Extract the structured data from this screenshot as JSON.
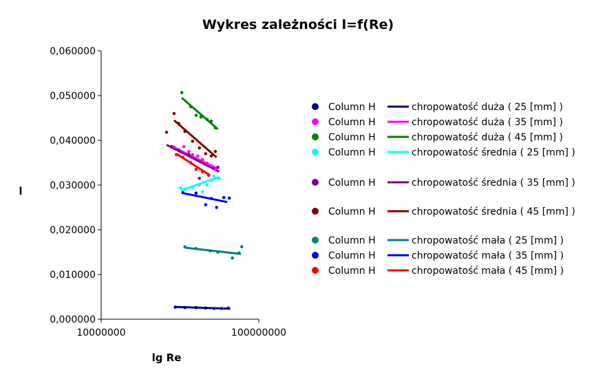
{
  "chart_data": {
    "type": "scatter",
    "title": "Wykres zależności l=f(Re)",
    "xlabel": "lg Re",
    "ylabel": "l",
    "x_scale": "log",
    "xlim": [
      10000000,
      100000000
    ],
    "ylim": [
      0,
      0.06
    ],
    "x_ticks": [
      "10000000",
      "100000000"
    ],
    "y_ticks": [
      "0,000000",
      "0,010000",
      "0,020000",
      "0,030000",
      "0,040000",
      "0,050000",
      "0,060000"
    ],
    "grid": false,
    "legend_position": "right",
    "series": [
      {
        "name": "Column H",
        "trend_name": "chropowatość duża ( 25 [mm] )",
        "color": "#000080",
        "points": [
          [
            29500000,
            0.0027
          ],
          [
            34000000,
            0.0026
          ],
          [
            40000000,
            0.0026
          ],
          [
            46000000,
            0.0025
          ],
          [
            52000000,
            0.0024
          ],
          [
            58000000,
            0.0024
          ],
          [
            64000000,
            0.0025
          ]
        ],
        "trend": [
          [
            29500000,
            0.00275
          ],
          [
            66000000,
            0.00235
          ]
        ]
      },
      {
        "name": "Column H",
        "trend_name": "chropowatość duża ( 35 [mm] )",
        "color": "#ff00ff",
        "points": [
          [
            29000000,
            0.0385
          ],
          [
            33500000,
            0.0386
          ],
          [
            36000000,
            0.0375
          ],
          [
            38000000,
            0.0368
          ],
          [
            41000000,
            0.0365
          ],
          [
            44000000,
            0.0357
          ],
          [
            47000000,
            0.0349
          ],
          [
            50000000,
            0.0343
          ],
          [
            53000000,
            0.0334
          ]
        ],
        "trend": [
          [
            29500000,
            0.0383
          ],
          [
            55000000,
            0.0336
          ]
        ]
      },
      {
        "name": "Column H",
        "trend_name": "chropowatość duża ( 45 [mm] )",
        "color": "#008000",
        "points": [
          [
            32500000,
            0.0507
          ],
          [
            37000000,
            0.0475
          ],
          [
            40000000,
            0.0456
          ],
          [
            43000000,
            0.0452
          ],
          [
            47000000,
            0.0447
          ],
          [
            50000000,
            0.0443
          ],
          [
            53000000,
            0.0428
          ]
        ],
        "trend": [
          [
            32500000,
            0.0495
          ],
          [
            55000000,
            0.0425
          ]
        ]
      },
      {
        "name": "Column H",
        "trend_name": "chropowatość średnia ( 25 [mm] )",
        "color": "#00ffff",
        "points": [
          [
            32000000,
            0.0294
          ],
          [
            34000000,
            0.029
          ],
          [
            38000000,
            0.0295
          ],
          [
            42000000,
            0.03
          ],
          [
            44000000,
            0.0285
          ],
          [
            47000000,
            0.03
          ],
          [
            50000000,
            0.031
          ],
          [
            52000000,
            0.032
          ],
          [
            56000000,
            0.0315
          ]
        ],
        "trend": [
          [
            32000000,
            0.0288
          ],
          [
            56000000,
            0.0318
          ]
        ]
      },
      {
        "name": "Column H",
        "trend_name": "chropowatość średnia ( 35 [mm] )",
        "color": "#800080",
        "points": [
          [
            26000000,
            0.0418
          ],
          [
            28000000,
            0.0386
          ],
          [
            31000000,
            0.0378
          ],
          [
            36000000,
            0.0368
          ],
          [
            42000000,
            0.0315
          ],
          [
            48000000,
            0.0322
          ],
          [
            55000000,
            0.034
          ]
        ],
        "trend": [
          [
            26000000,
            0.039
          ],
          [
            56000000,
            0.033
          ]
        ]
      },
      {
        "name": "Column H",
        "trend_name": "chropowatość średnia ( 45 [mm] )",
        "color": "#800000",
        "points": [
          [
            29000000,
            0.046
          ],
          [
            31000000,
            0.0438
          ],
          [
            34000000,
            0.042
          ],
          [
            38000000,
            0.0398
          ],
          [
            42000000,
            0.0383
          ],
          [
            46000000,
            0.037
          ],
          [
            50000000,
            0.0365
          ],
          [
            53000000,
            0.0375
          ]
        ],
        "trend": [
          [
            29000000,
            0.0445
          ],
          [
            54000000,
            0.0362
          ]
        ]
      },
      {
        "name": "Column H",
        "trend_name": "chropowatość mała ( 25 [mm] )",
        "color": "#008080",
        "points": [
          [
            34000000,
            0.0162
          ],
          [
            40000000,
            0.0158
          ],
          [
            49000000,
            0.0153
          ],
          [
            55000000,
            0.015
          ],
          [
            68000000,
            0.0137
          ],
          [
            75000000,
            0.0148
          ],
          [
            78000000,
            0.0162
          ]
        ],
        "trend": [
          [
            34000000,
            0.016
          ],
          [
            77000000,
            0.0146
          ]
        ]
      },
      {
        "name": "Column H",
        "trend_name": "chropowatość mała ( 35 [mm] )",
        "color": "#0000ff",
        "points": [
          [
            33000000,
            0.0283
          ],
          [
            40000000,
            0.0282
          ],
          [
            46000000,
            0.0256
          ],
          [
            50000000,
            0.027
          ],
          [
            54000000,
            0.025
          ],
          [
            60000000,
            0.0272
          ],
          [
            65000000,
            0.0271
          ]
        ],
        "trend": [
          [
            33000000,
            0.0282
          ],
          [
            63000000,
            0.0262
          ]
        ]
      },
      {
        "name": "Column H",
        "trend_name": "chropowatość mała ( 45 [mm] )",
        "color": "#ff0000",
        "points": [
          [
            30000000,
            0.0368
          ],
          [
            33000000,
            0.0362
          ],
          [
            37000000,
            0.035
          ],
          [
            40000000,
            0.0335
          ],
          [
            44000000,
            0.033
          ],
          [
            48000000,
            0.0322
          ]
        ],
        "trend": [
          [
            30000000,
            0.037
          ],
          [
            49000000,
            0.0322
          ]
        ]
      }
    ]
  }
}
